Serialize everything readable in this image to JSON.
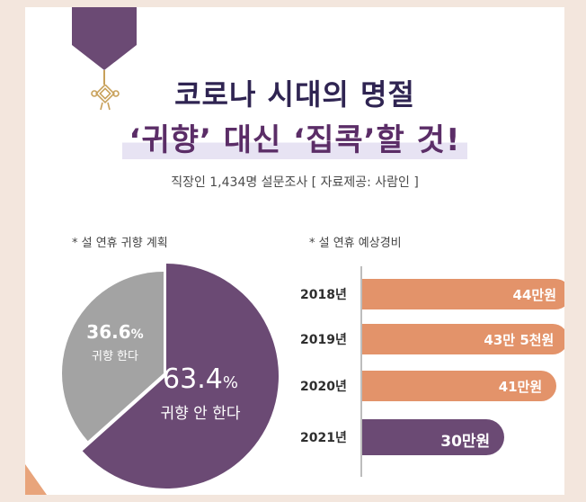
{
  "header": {
    "title_line1": "코로나 시대의 명절",
    "title_line2": "‘귀향’ 대신 ‘집콕’할 것!",
    "subtitle": "직장인 1,434명 설문조사 [ 자료제공: 사람인 ]"
  },
  "colors": {
    "purple": "#6b4a74",
    "gray": "#a3a3a3",
    "orange": "#e3936a",
    "bar2021": "#6b4a74"
  },
  "chart_data": [
    {
      "type": "pie",
      "title": "* 설 연휴 귀향 계획",
      "slices": [
        {
          "pct": "63.4",
          "unit": "%",
          "label": "귀향 안 한다",
          "value": 63.4
        },
        {
          "pct": "36.6",
          "unit": "%",
          "label": "귀향 한다",
          "value": 36.6
        }
      ]
    },
    {
      "type": "bar",
      "orientation": "horizontal",
      "title": "* 설 연휴 예상경비",
      "categories": [
        "2018년",
        "2019년",
        "2020년",
        "2021년"
      ],
      "values": [
        440000,
        435000,
        410000,
        300000
      ],
      "value_labels": [
        "44만원",
        "43만 5천원",
        "41만원",
        "30만원"
      ]
    }
  ]
}
